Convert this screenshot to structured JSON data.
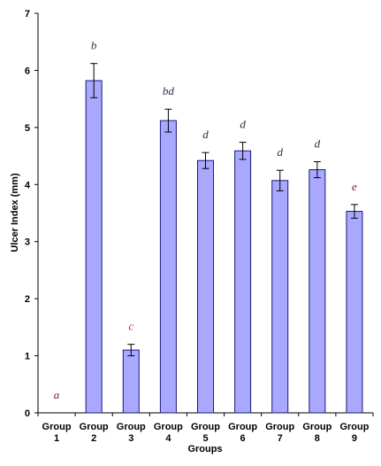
{
  "chart_data": {
    "type": "bar",
    "xlabel": "Groups",
    "ylabel": "Ulcer Index (mm)",
    "ylim": [
      0,
      7
    ],
    "yticks": [
      "0",
      "1",
      "2",
      "3",
      "4",
      "5",
      "6",
      "7"
    ],
    "grid": false,
    "bar_color": "#a8a8ff",
    "bar_edge_color": "#1a1a7a",
    "categories": [
      [
        "Group",
        "1"
      ],
      [
        "Group",
        "2"
      ],
      [
        "Group",
        "3"
      ],
      [
        "Group",
        "4"
      ],
      [
        "Group",
        "5"
      ],
      [
        "Group",
        "6"
      ],
      [
        "Group",
        "7"
      ],
      [
        "Group",
        "8"
      ],
      [
        "Group",
        "9"
      ]
    ],
    "values": [
      0,
      5.82,
      1.1,
      5.12,
      4.42,
      4.59,
      4.07,
      4.26,
      3.53
    ],
    "errors": [
      0,
      0.3,
      0.1,
      0.2,
      0.14,
      0.15,
      0.18,
      0.14,
      0.12
    ],
    "significance": [
      "a",
      "b",
      "c",
      "bd",
      "d",
      "d",
      "d",
      "d",
      "e"
    ],
    "significance_colors": [
      "#7a1a1a",
      "#4a2a2a",
      "#c0301e",
      "#2a2a4a",
      "#2a2a4a",
      "#2a2a4a",
      "#2a2a4a",
      "#2a2a4a",
      "#7a1a1a"
    ]
  }
}
